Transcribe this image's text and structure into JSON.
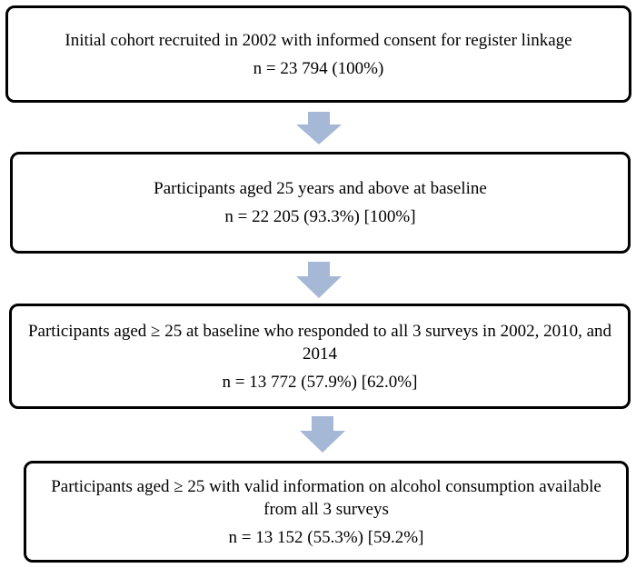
{
  "flowchart": {
    "boxes": [
      {
        "description": "Initial cohort recruited in 2002 with informed consent for register linkage",
        "count": "n = 23 794 (100%)"
      },
      {
        "description": "Participants aged 25 years and above at baseline",
        "count": "n = 22 205 (93.3%) [100%]"
      },
      {
        "description": "Participants aged ≥ 25 at baseline who responded to all 3 surveys in 2002, 2010, and 2014",
        "count": "n = 13 772 (57.9%) [62.0%]"
      },
      {
        "description": "Participants aged ≥ 25 with valid information on alcohol consumption available from all 3 surveys",
        "count": "n = 13 152 (55.3%) [59.2%]"
      }
    ],
    "arrow_color": "#A5B8D6",
    "border_color": "#000000"
  }
}
